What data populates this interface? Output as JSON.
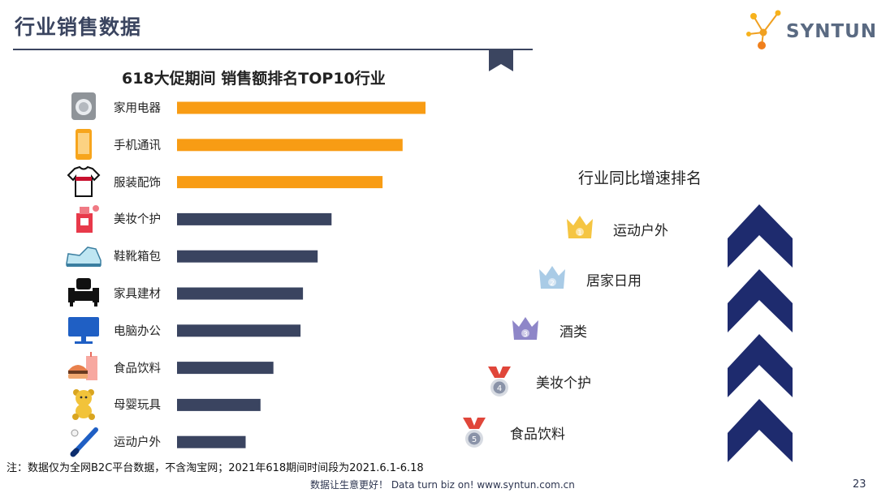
{
  "header": {
    "title": "行业销售数据",
    "logo_text": "SYNTUN"
  },
  "colors": {
    "top3": "#F89C14",
    "rest": "#3A4460",
    "navy": "#1E2B6E",
    "title": "#3B4560"
  },
  "chart_data": {
    "type": "bar",
    "orientation": "horizontal",
    "title": "618大促期间 销售额排名TOP10行业",
    "categories": [
      "家用电器",
      "手机通讯",
      "服装配饰",
      "美妆个护",
      "鞋靴箱包",
      "家具建材",
      "电脑办公",
      "食品饮料",
      "母婴玩具",
      "运动户外"
    ],
    "values": [
      100,
      90.8,
      82.7,
      62.2,
      56.6,
      50.7,
      49.7,
      38.8,
      33.6,
      27.6
    ],
    "highlight_top": 3,
    "xlim": [
      0,
      100
    ],
    "xlabel": "",
    "ylabel": "",
    "value_labels": false,
    "icons": [
      "washing-machine-icon",
      "smartphone-icon",
      "tshirt-icon",
      "perfume-icon",
      "sneaker-icon",
      "sofa-icon",
      "monitor-icon",
      "fast-food-icon",
      "teddy-bear-icon",
      "baseball-bat-icon"
    ]
  },
  "growth_ranking": {
    "title": "行业同比增速排名",
    "items": [
      {
        "rank": "1",
        "label": "运动户外",
        "badge": "crown",
        "color": "#F5C542"
      },
      {
        "rank": "2",
        "label": "居家日用",
        "badge": "crown",
        "color": "#A9CBE6"
      },
      {
        "rank": "3",
        "label": "酒类",
        "badge": "crown",
        "color": "#8E86C8"
      },
      {
        "rank": "4",
        "label": "美妆个护",
        "badge": "medal",
        "color": "#8A93A8"
      },
      {
        "rank": "5",
        "label": "食品饮料",
        "badge": "medal",
        "color": "#8A93A8"
      }
    ]
  },
  "footer": {
    "note": "注：数据仅为全网B2C平台数据，不含淘宝网；2021年618期间时间段为2021.6.1-6.18",
    "slogan": "数据让生意更好！ Data turn biz on!  www.syntun.com.cn",
    "page_number": "23"
  }
}
